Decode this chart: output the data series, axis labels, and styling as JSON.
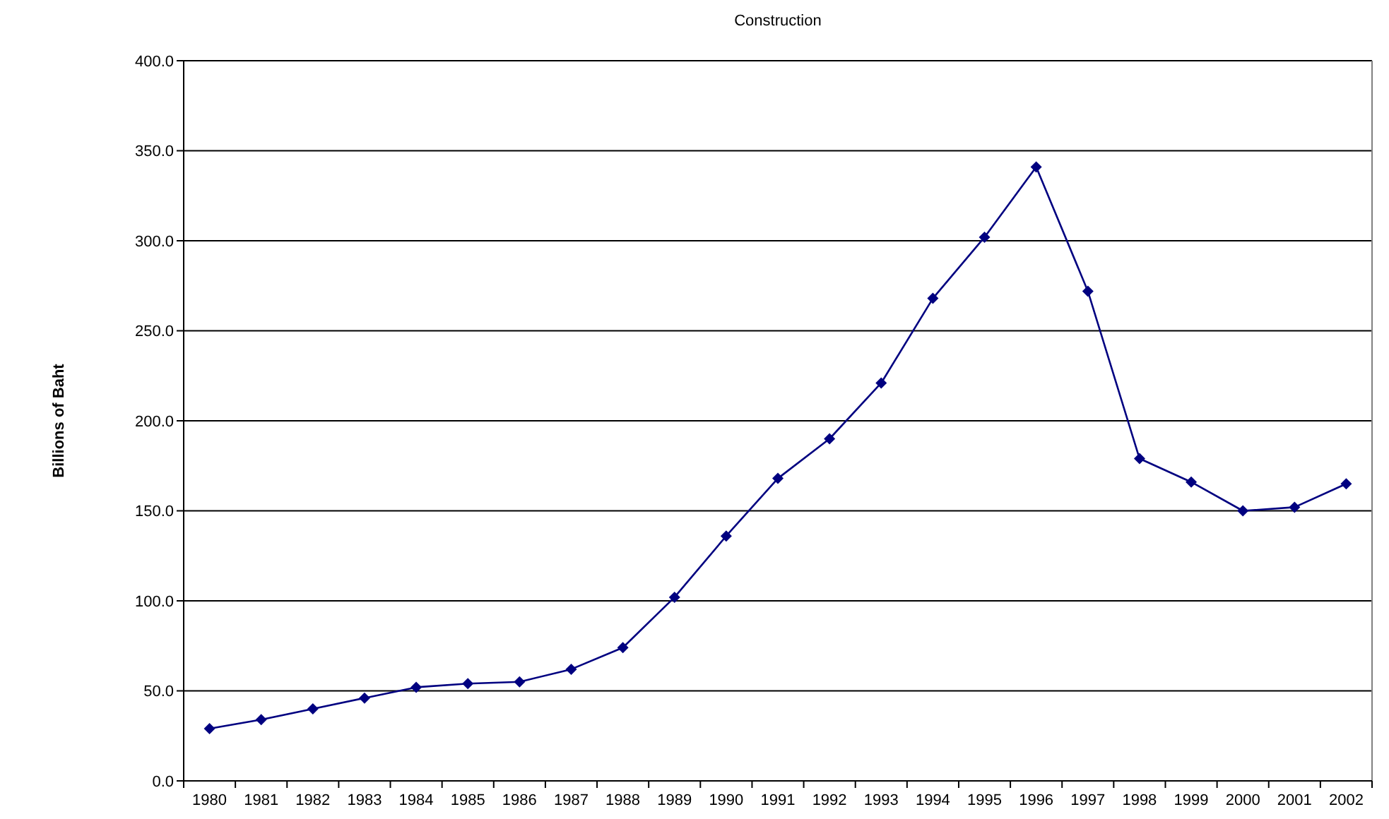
{
  "chart_data": {
    "type": "line",
    "title": "Construction",
    "ylabel": "Billions of Baht",
    "categories": [
      "1980",
      "1981",
      "1982",
      "1983",
      "1984",
      "1985",
      "1986",
      "1987",
      "1988",
      "1989",
      "1990",
      "1991",
      "1992",
      "1993",
      "1994",
      "1995",
      "1996",
      "1997",
      "1998",
      "1999",
      "2000",
      "2001",
      "2002"
    ],
    "series": [
      {
        "color": "#000080",
        "values": [
          29,
          34,
          40,
          46,
          52,
          54,
          55,
          62,
          74,
          102,
          136,
          168,
          190,
          221,
          268,
          302,
          341,
          272,
          179,
          166,
          150,
          152,
          165
        ]
      }
    ],
    "ylim": [
      0,
      400
    ],
    "yticks": [
      {
        "value": 0,
        "label": "0.0"
      },
      {
        "value": 50,
        "label": "50.0"
      },
      {
        "value": 100,
        "label": "100.0"
      },
      {
        "value": 150,
        "label": "150.0"
      },
      {
        "value": 200,
        "label": "200.0"
      },
      {
        "value": 250,
        "label": "250.0"
      },
      {
        "value": 300,
        "label": "300.0"
      },
      {
        "value": 350,
        "label": "350.0"
      },
      {
        "value": 400,
        "label": "400.0"
      }
    ],
    "grid": "y",
    "marker": "diamond",
    "line_style": "solid"
  }
}
